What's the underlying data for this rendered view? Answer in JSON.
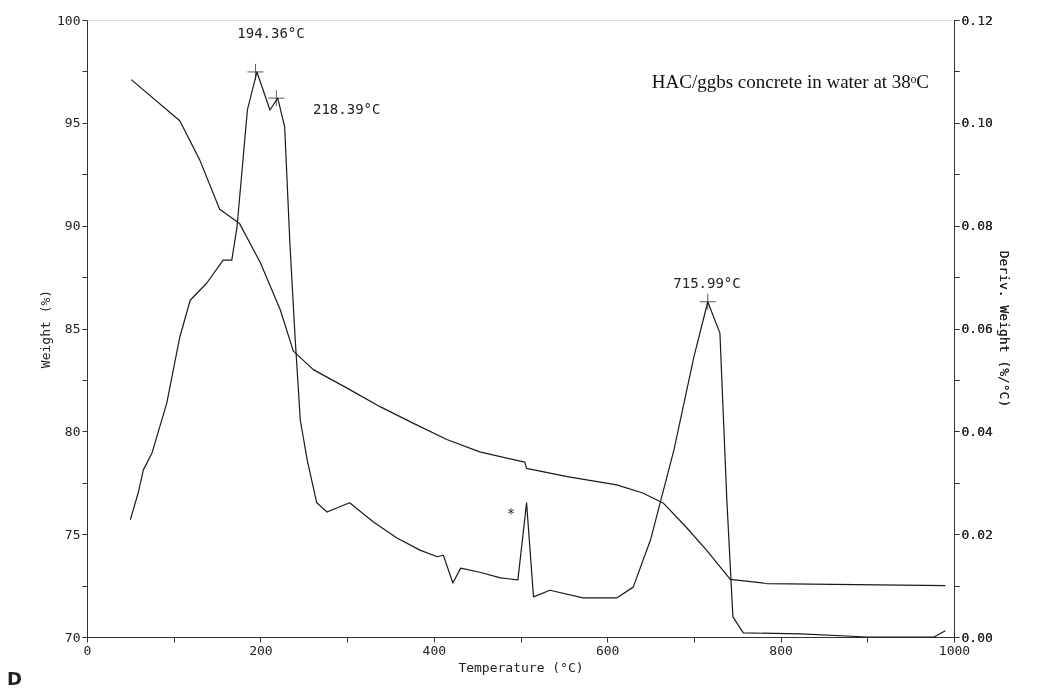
{
  "chart_data": {
    "type": "line",
    "title": "HAC/ggbs concrete in water at 38ᵒC",
    "xlabel": "Temperature (°C)",
    "ylabel": "Weight (%)",
    "y2label": "Deriv. Weight (%/°C)",
    "xlim": [
      0,
      1000
    ],
    "xticks": [
      0,
      {
        "value": 100,
        "label": null
      },
      200,
      {
        "value": 300,
        "label": null
      },
      400,
      {
        "value": 500,
        "label": null
      },
      600,
      {
        "value": 700,
        "label": null
      },
      800,
      {
        "value": 900,
        "label": null
      },
      1000
    ],
    "ylim": [
      70,
      100
    ],
    "yticks": [
      70,
      {
        "value": 72.5,
        "label": null
      },
      75,
      {
        "value": 77.5,
        "label": null
      },
      80,
      {
        "value": 82.5,
        "label": null
      },
      85,
      {
        "value": 87.5,
        "label": null
      },
      90,
      {
        "value": 92.5,
        "label": null
      },
      95,
      {
        "value": 97.5,
        "label": null
      },
      100
    ],
    "y2lim": [
      0,
      0.12
    ],
    "y2ticks": [
      {
        "value": 0,
        "label": "0.00"
      },
      {
        "value": 0.01,
        "label": null
      },
      {
        "value": 0.02,
        "label": "0.02"
      },
      {
        "value": 0.03,
        "label": null
      },
      {
        "value": 0.04,
        "label": "0.04"
      },
      {
        "value": 0.05,
        "label": null
      },
      {
        "value": 0.06,
        "label": "0.06"
      },
      {
        "value": 0.07,
        "label": null
      },
      {
        "value": 0.08,
        "label": "0.08"
      },
      {
        "value": 0.09,
        "label": null
      },
      {
        "value": 0.1,
        "label": "0.10"
      },
      {
        "value": 0.11,
        "label": null
      },
      {
        "value": 0.12,
        "label": "0.12"
      }
    ],
    "grid": false,
    "marker": "none",
    "line_style": "solid",
    "series": [
      {
        "color": "#1a1a1a",
        "x": [
          51,
          107,
          130,
          153,
          176,
          200,
          223,
          238,
          261,
          300,
          338,
          376,
          415,
          453,
          505,
          507,
          554,
          611,
          641,
          665,
          692,
          715,
          742,
          784,
          990
        ],
        "values": [
          97.1,
          95.1,
          93.2,
          90.8,
          90.1,
          88.2,
          85.9,
          83.9,
          83.0,
          82.1,
          81.2,
          80.4,
          79.6,
          79.0,
          78.5,
          78.2,
          77.8,
          77.4,
          77.0,
          76.5,
          75.3,
          74.2,
          72.8,
          72.6,
          72.5
        ]
      },
      {
        "color": "#1a1a1a",
        "axis": "y2",
        "x": [
          50,
          59,
          65,
          75,
          92,
          107,
          119,
          138,
          157,
          167,
          173,
          185,
          196,
          211,
          220,
          228,
          234,
          240,
          246,
          254,
          265,
          277,
          288,
          303,
          330,
          357,
          384,
          404,
          411,
          422,
          431,
          453,
          477,
          497,
          507,
          515,
          534,
          572,
          611,
          630,
          650,
          677,
          700,
          716,
          730,
          738,
          745,
          757,
          823,
          900,
          977,
          990
        ],
        "values": [
          0.0228,
          0.028,
          0.0325,
          0.0358,
          0.0455,
          0.0583,
          0.0655,
          0.0688,
          0.0733,
          0.0733,
          0.0797,
          0.1025,
          0.1099,
          0.1025,
          0.1048,
          0.0992,
          0.0766,
          0.0583,
          0.0422,
          0.0344,
          0.0261,
          0.0243,
          0.0251,
          0.0261,
          0.0224,
          0.0193,
          0.0169,
          0.0156,
          0.0159,
          0.0105,
          0.0134,
          0.0126,
          0.0115,
          0.0111,
          0.0261,
          0.0078,
          0.0091,
          0.0076,
          0.0076,
          0.0097,
          0.0189,
          0.0364,
          0.0545,
          0.0652,
          0.0591,
          0.0266,
          0.0039,
          0.0008,
          0.0006,
          0.0,
          0.0,
          0.0012
        ]
      },
      {
        "type": "scatter",
        "marker": "cross",
        "color": "#1a1a1a",
        "axis": "y2",
        "x": [
          194.36,
          218.39,
          715.99
        ],
        "values": [
          0.1099,
          0.1048,
          0.0652
        ]
      }
    ],
    "annotations": [
      "194.36°C",
      "218.39°C",
      "715.99°C",
      "*",
      "D"
    ]
  }
}
